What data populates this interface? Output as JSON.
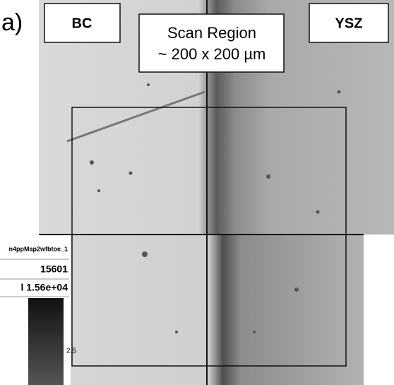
{
  "label": "a)",
  "regions": {
    "left": "BC",
    "right": "YSZ"
  },
  "scan_box": {
    "title": "Scan Region",
    "size": "~ 200 x 200 µm"
  },
  "colorbar": {
    "title": "n4ppMap2wfbtoe_1",
    "max": "15601",
    "max_sci": "l 1.56e+04",
    "tick": "2.5"
  }
}
